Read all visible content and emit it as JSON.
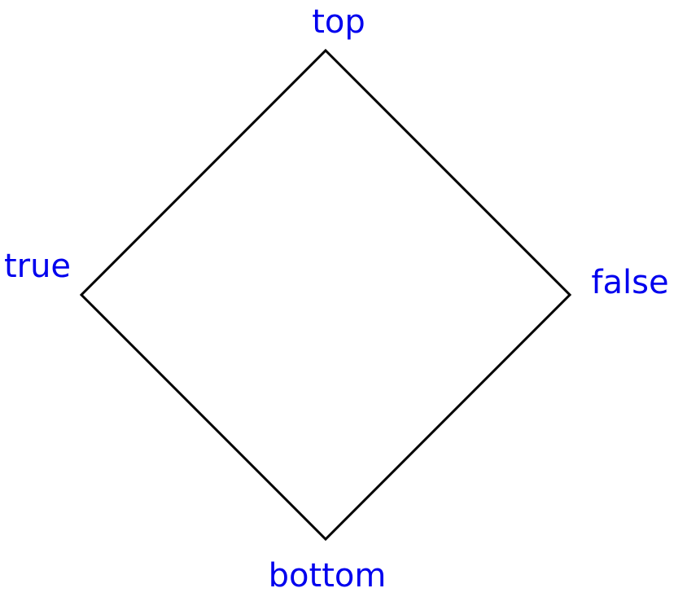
{
  "diagram": {
    "nodes": {
      "top": "top",
      "left": "true",
      "right": "false",
      "bottom": "bottom"
    },
    "edges": [
      {
        "from": "top",
        "to": "right"
      },
      {
        "from": "right",
        "to": "bottom"
      },
      {
        "from": "bottom",
        "to": "left"
      },
      {
        "from": "left",
        "to": "top"
      }
    ],
    "colors": {
      "label": "#0000ee",
      "edge": "#000000"
    }
  }
}
